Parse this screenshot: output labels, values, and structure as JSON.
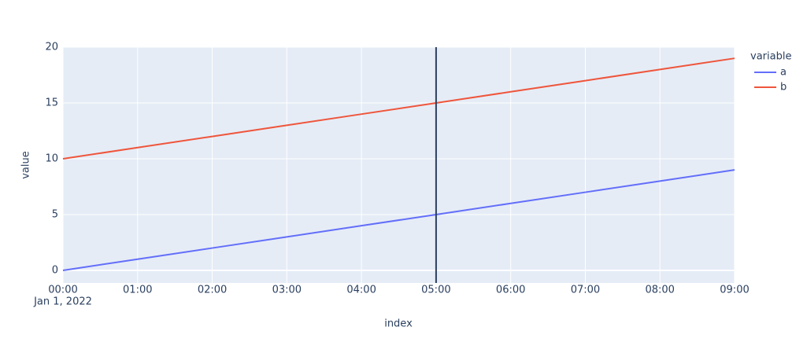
{
  "chart_data": {
    "type": "line",
    "x": [
      "2022-01-01 00:00",
      "2022-01-01 01:00",
      "2022-01-01 02:00",
      "2022-01-01 03:00",
      "2022-01-01 04:00",
      "2022-01-01 05:00",
      "2022-01-01 06:00",
      "2022-01-01 07:00",
      "2022-01-01 08:00",
      "2022-01-01 09:00"
    ],
    "series": [
      {
        "name": "a",
        "color": "#636efa",
        "values": [
          0,
          1,
          2,
          3,
          4,
          5,
          6,
          7,
          8,
          9
        ]
      },
      {
        "name": "b",
        "color": "#ef553b",
        "values": [
          10,
          11,
          12,
          13,
          14,
          15,
          16,
          17,
          18,
          19
        ]
      }
    ],
    "xlabel": "index",
    "ylabel": "value",
    "legend_title": "variable",
    "xlim": [
      "2022-01-01 00:00",
      "2022-01-01 09:00"
    ],
    "xticks": [
      {
        "value": "2022-01-01 00:00",
        "label": "00:00"
      },
      {
        "value": "2022-01-01 01:00",
        "label": "01:00"
      },
      {
        "value": "2022-01-01 02:00",
        "label": "02:00"
      },
      {
        "value": "2022-01-01 03:00",
        "label": "03:00"
      },
      {
        "value": "2022-01-01 04:00",
        "label": "04:00"
      },
      {
        "value": "2022-01-01 05:00",
        "label": "05:00"
      },
      {
        "value": "2022-01-01 06:00",
        "label": "06:00"
      },
      {
        "value": "2022-01-01 07:00",
        "label": "07:00"
      },
      {
        "value": "2022-01-01 08:00",
        "label": "08:00"
      },
      {
        "value": "2022-01-01 09:00",
        "label": "09:00"
      }
    ],
    "x_date_label": "Jan 1, 2022",
    "ylim": [
      -1.13,
      20
    ],
    "yticks": [
      0,
      5,
      10,
      15,
      20
    ],
    "grid": true,
    "vlines": [
      {
        "x": "2022-01-01 05:00",
        "color": "#2a3f5f"
      }
    ],
    "legend": "right"
  }
}
